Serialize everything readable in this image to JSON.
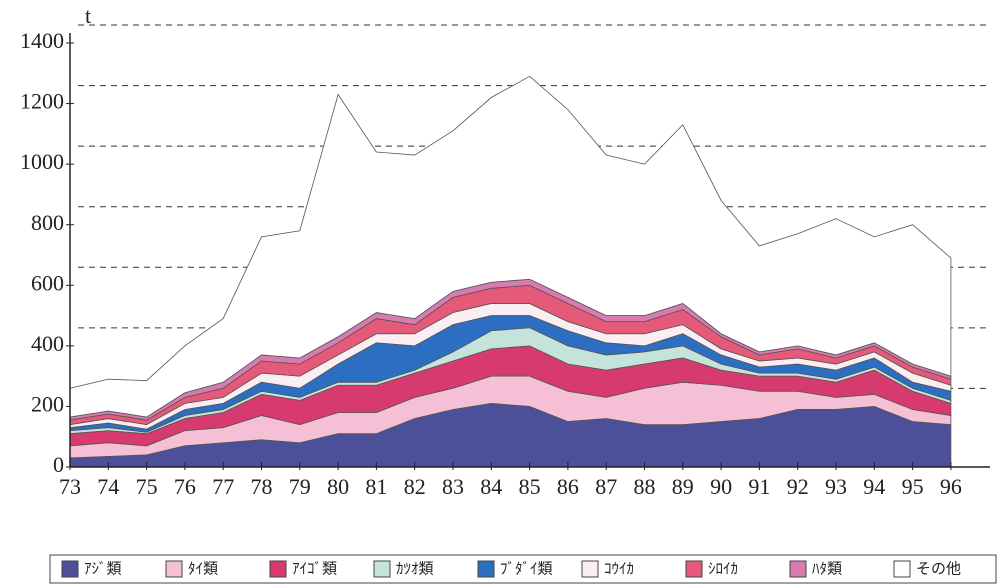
{
  "chart_data": {
    "type": "stacked_area",
    "y_label": "t",
    "categories": [
      "73",
      "74",
      "75",
      "76",
      "77",
      "78",
      "79",
      "80",
      "81",
      "82",
      "83",
      "84",
      "85",
      "86",
      "87",
      "88",
      "89",
      "90",
      "91",
      "92",
      "93",
      "94",
      "95",
      "96"
    ],
    "ylim": [
      0,
      1400
    ],
    "yticks": [
      0,
      200,
      400,
      600,
      800,
      1000,
      1200,
      1400
    ],
    "grid": true,
    "series": [
      {
        "name": "ｱｼﾞ類",
        "color": "#4b5098",
        "values": [
          30,
          35,
          40,
          70,
          80,
          90,
          80,
          110,
          110,
          160,
          190,
          210,
          200,
          150,
          160,
          140,
          140,
          150,
          160,
          190,
          190,
          200,
          150,
          140
        ]
      },
      {
        "name": "ﾀｲ類",
        "color": "#f5bfd6",
        "values": [
          40,
          45,
          30,
          50,
          50,
          80,
          60,
          70,
          70,
          70,
          70,
          90,
          100,
          100,
          70,
          120,
          140,
          120,
          90,
          60,
          40,
          40,
          40,
          30
        ]
      },
      {
        "name": "ｱｲｺﾞ類",
        "color": "#d63a6e",
        "values": [
          40,
          40,
          40,
          40,
          50,
          70,
          80,
          90,
          90,
          80,
          90,
          90,
          100,
          90,
          90,
          80,
          80,
          50,
          50,
          50,
          50,
          80,
          60,
          40
        ]
      },
      {
        "name": "ｶﾂｵ類",
        "color": "#c4e3da",
        "values": [
          10,
          10,
          5,
          10,
          10,
          10,
          10,
          10,
          10,
          10,
          30,
          60,
          60,
          60,
          50,
          40,
          40,
          20,
          10,
          10,
          10,
          10,
          10,
          10
        ]
      },
      {
        "name": "ﾌﾞﾀﾞｲ類",
        "color": "#2c6fc2",
        "values": [
          10,
          15,
          10,
          20,
          20,
          30,
          30,
          60,
          130,
          80,
          90,
          50,
          40,
          50,
          40,
          20,
          40,
          30,
          20,
          30,
          30,
          30,
          20,
          30
        ]
      },
      {
        "name": "ｺｳｲｶ",
        "color": "#fbeef3",
        "values": [
          10,
          15,
          15,
          20,
          20,
          30,
          40,
          30,
          30,
          40,
          40,
          40,
          40,
          30,
          30,
          40,
          30,
          20,
          20,
          20,
          20,
          20,
          30,
          20
        ]
      },
      {
        "name": "ｼﾛｲｶ",
        "color": "#e45a78",
        "values": [
          15,
          15,
          15,
          20,
          30,
          40,
          40,
          40,
          50,
          30,
          50,
          50,
          60,
          60,
          40,
          40,
          50,
          40,
          20,
          30,
          20,
          20,
          20,
          20
        ]
      },
      {
        "name": "ﾊﾀ類",
        "color": "#d77bb0",
        "values": [
          10,
          10,
          10,
          15,
          20,
          20,
          20,
          20,
          20,
          20,
          20,
          20,
          20,
          20,
          20,
          20,
          20,
          10,
          10,
          10,
          10,
          10,
          10,
          10
        ]
      },
      {
        "name": "その他",
        "color": "#ffffff",
        "values": [
          95,
          105,
          120,
          155,
          210,
          390,
          420,
          800,
          530,
          540,
          530,
          610,
          670,
          620,
          530,
          500,
          590,
          440,
          350,
          370,
          450,
          350,
          460,
          390
        ]
      }
    ]
  }
}
